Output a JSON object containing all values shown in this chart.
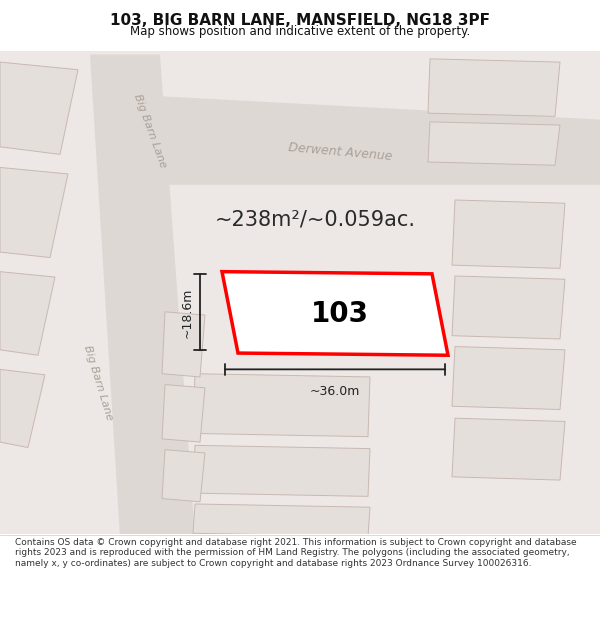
{
  "title": "103, BIG BARN LANE, MANSFIELD, NG18 3PF",
  "subtitle": "Map shows position and indicative extent of the property.",
  "footer": "Contains OS data © Crown copyright and database right 2021. This information is subject to Crown copyright and database rights 2023 and is reproduced with the permission of HM Land Registry. The polygons (including the associated geometry, namely x, y co-ordinates) are subject to Crown copyright and database rights 2023 Ordnance Survey 100026316.",
  "area_text": "~238m²/~0.059ac.",
  "label_103": "103",
  "dim_width": "~36.0m",
  "dim_height": "~18.6m",
  "street_label_bbl_lower": "Big Barn Lane",
  "street_label_bbl_upper": "Big Barn Lane",
  "street_label_derw": "Derwent Avenue",
  "highlight_color": "#ff0000",
  "dim_color": "#222222",
  "title_color": "#111111",
  "footer_color": "#333333",
  "map_bg": "#ede8e5",
  "road_color": "#ddd8d4",
  "building_fill": "#e4dfdb",
  "building_edge": "#c9b8b2",
  "street_text_color": "#aaa098",
  "footer_bg": "#ffffff",
  "title_bg": "#ffffff"
}
